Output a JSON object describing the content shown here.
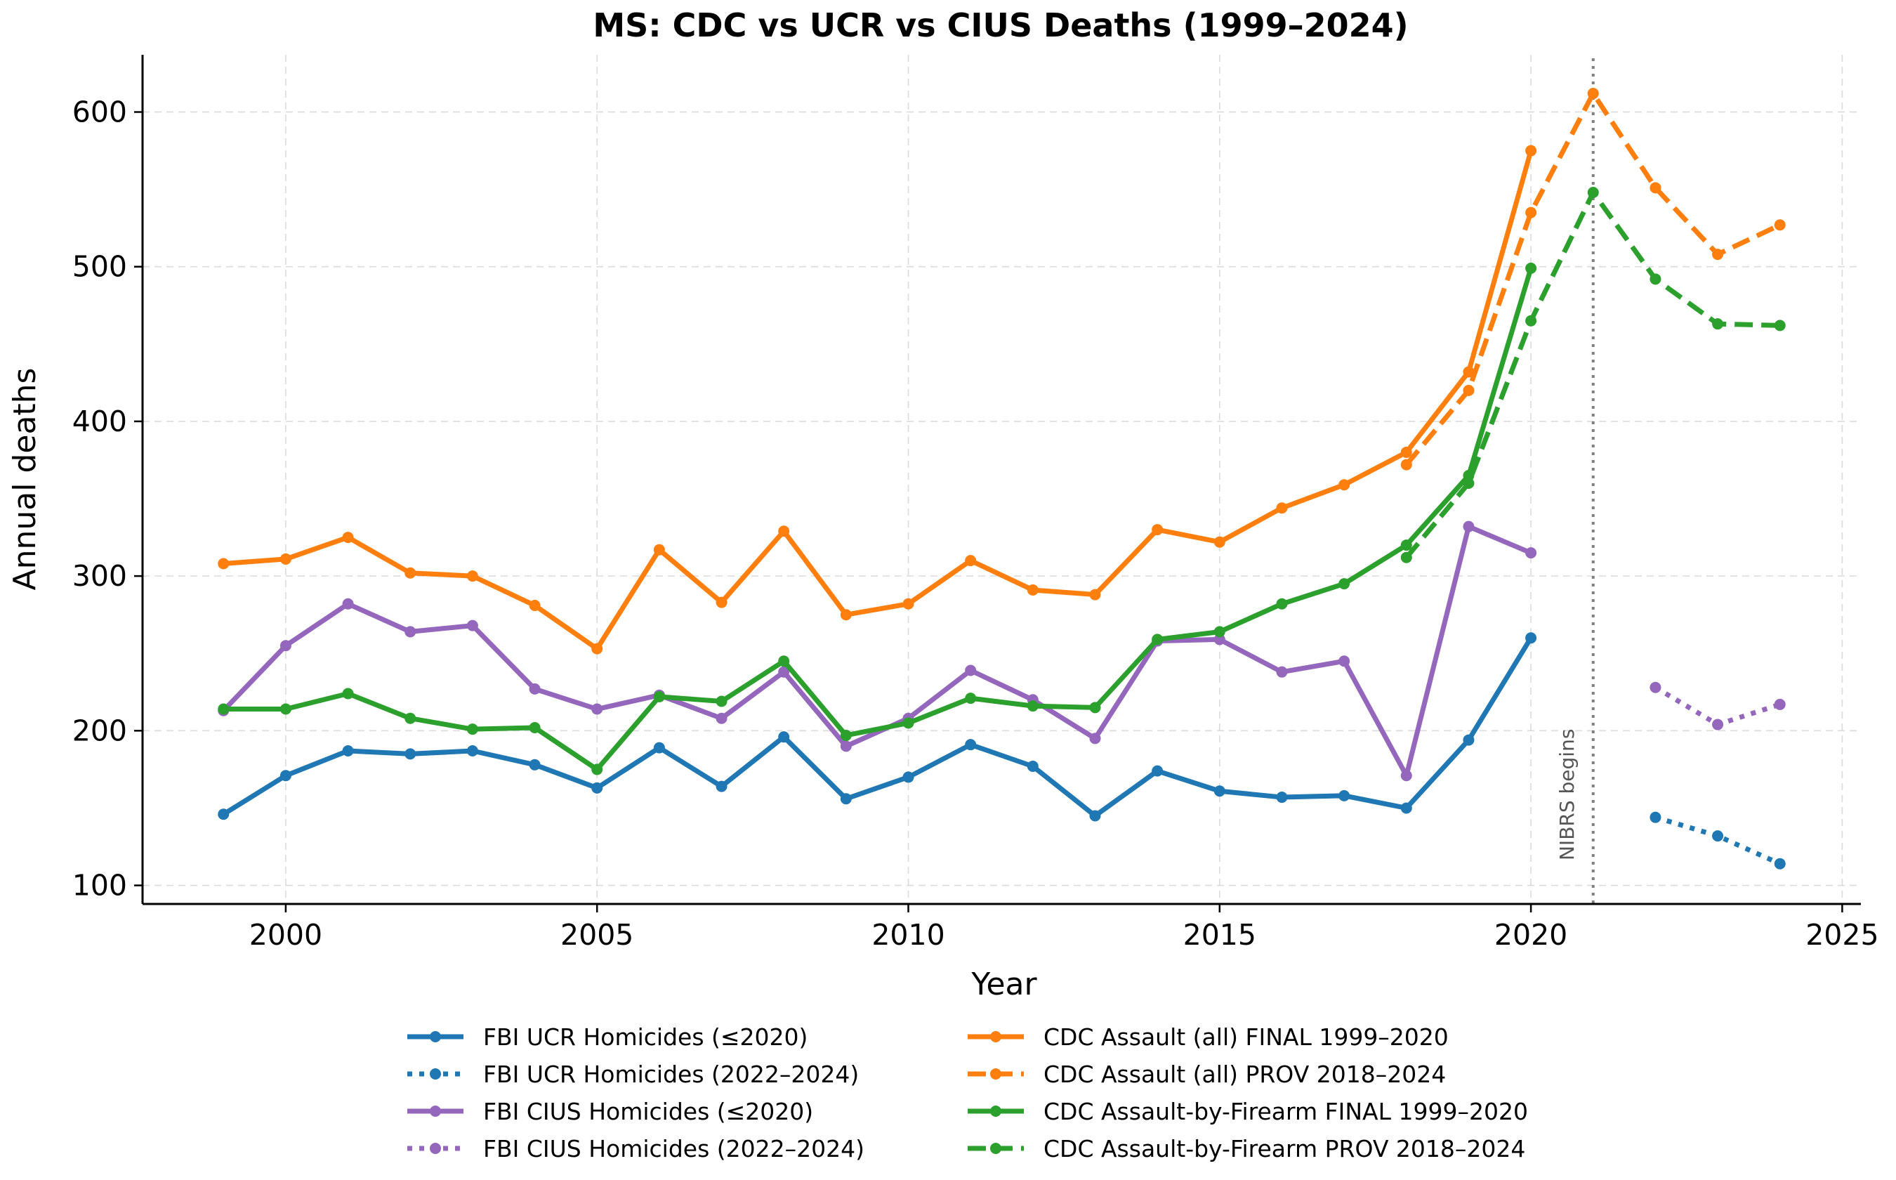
{
  "chart_data": {
    "type": "line",
    "title": "MS: CDC vs UCR vs CIUS Deaths (1999–2024)",
    "xlabel": "Year",
    "ylabel": "Annual deaths",
    "xlim": [
      1997.7,
      2025.3
    ],
    "ylim": [
      88,
      637
    ],
    "xticks": [
      2000,
      2005,
      2010,
      2015,
      2020,
      2025
    ],
    "yticks": [
      100,
      200,
      300,
      400,
      500,
      600
    ],
    "grid": true,
    "legend_position": "bottom",
    "annotation": {
      "text": "NIBRS begins",
      "x": 2021
    },
    "series": [
      {
        "name": "FBI UCR Homicides (≤2020)",
        "color": "#1f77b4",
        "style": "solid",
        "x": [
          1999,
          2000,
          2001,
          2002,
          2003,
          2004,
          2005,
          2006,
          2007,
          2008,
          2009,
          2010,
          2011,
          2012,
          2013,
          2014,
          2015,
          2016,
          2017,
          2018,
          2019,
          2020
        ],
        "y": [
          146,
          171,
          187,
          185,
          187,
          178,
          163,
          189,
          164,
          196,
          156,
          170,
          191,
          177,
          145,
          174,
          161,
          157,
          158,
          150,
          194,
          260
        ]
      },
      {
        "name": "FBI UCR Homicides (2022–2024)",
        "color": "#1f77b4",
        "style": "dotted",
        "x": [
          2022,
          2023,
          2024
        ],
        "y": [
          144,
          132,
          114
        ]
      },
      {
        "name": "FBI CIUS Homicides (≤2020)",
        "color": "#9467bd",
        "style": "solid",
        "x": [
          1999,
          2000,
          2001,
          2002,
          2003,
          2004,
          2005,
          2006,
          2007,
          2008,
          2009,
          2010,
          2011,
          2012,
          2013,
          2014,
          2015,
          2016,
          2017,
          2018,
          2019,
          2020
        ],
        "y": [
          213,
          255,
          282,
          264,
          268,
          227,
          214,
          223,
          208,
          238,
          190,
          208,
          239,
          220,
          195,
          258,
          259,
          238,
          245,
          171,
          332,
          315
        ]
      },
      {
        "name": "FBI CIUS Homicides (2022–2024)",
        "color": "#9467bd",
        "style": "dotted",
        "x": [
          2022,
          2023,
          2024
        ],
        "y": [
          228,
          204,
          217
        ]
      },
      {
        "name": "CDC Assault (all) FINAL 1999–2020",
        "color": "#ff7f0e",
        "style": "solid",
        "x": [
          1999,
          2000,
          2001,
          2002,
          2003,
          2004,
          2005,
          2006,
          2007,
          2008,
          2009,
          2010,
          2011,
          2012,
          2013,
          2014,
          2015,
          2016,
          2017,
          2018,
          2019,
          2020
        ],
        "y": [
          308,
          311,
          325,
          302,
          300,
          281,
          253,
          317,
          283,
          329,
          275,
          282,
          310,
          291,
          288,
          330,
          322,
          344,
          359,
          380,
          432,
          575
        ]
      },
      {
        "name": "CDC Assault (all) PROV 2018–2024",
        "color": "#ff7f0e",
        "style": "dashed",
        "x": [
          2018,
          2019,
          2020,
          2021,
          2022,
          2023,
          2024
        ],
        "y": [
          372,
          420,
          535,
          612,
          551,
          508,
          527
        ]
      },
      {
        "name": "CDC Assault-by-Firearm FINAL 1999–2020",
        "color": "#2ca02c",
        "style": "solid",
        "x": [
          1999,
          2000,
          2001,
          2002,
          2003,
          2004,
          2005,
          2006,
          2007,
          2008,
          2009,
          2010,
          2011,
          2012,
          2013,
          2014,
          2015,
          2016,
          2017,
          2018,
          2019,
          2020
        ],
        "y": [
          214,
          214,
          224,
          208,
          201,
          202,
          175,
          222,
          219,
          245,
          197,
          205,
          221,
          216,
          215,
          259,
          264,
          282,
          295,
          320,
          365,
          499
        ]
      },
      {
        "name": "CDC Assault-by-Firearm PROV 2018–2024",
        "color": "#2ca02c",
        "style": "dashed",
        "x": [
          2018,
          2019,
          2020,
          2021,
          2022,
          2023,
          2024
        ],
        "y": [
          312,
          360,
          465,
          548,
          492,
          463,
          462
        ]
      }
    ]
  }
}
